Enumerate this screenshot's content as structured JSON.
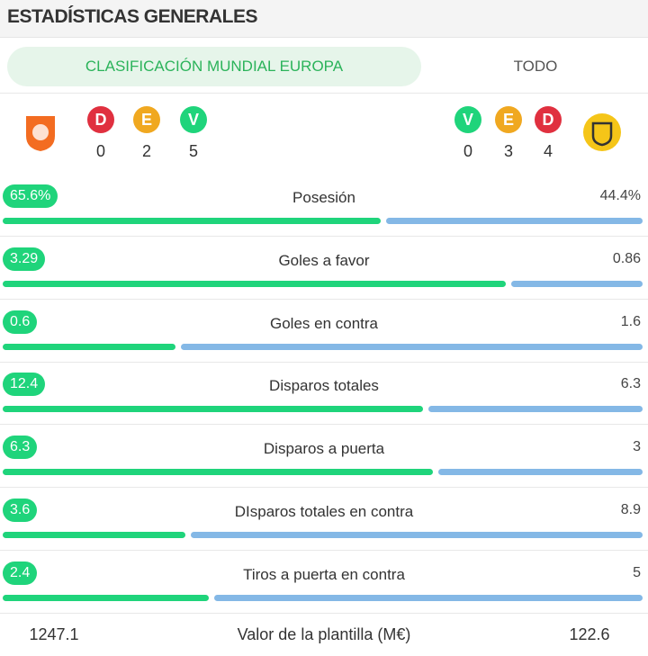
{
  "header": {
    "title": "ESTADÍSTICAS GENERALES"
  },
  "tabs": [
    "CLASIFICACIÓN MUNDIAL EUROPA",
    "TODO"
  ],
  "teams": [
    {
      "record": [
        {
          "letter": "D",
          "count": 0,
          "color": "#e0303f"
        },
        {
          "letter": "E",
          "count": 2,
          "color": "#f0a820"
        },
        {
          "letter": "V",
          "count": 5,
          "color": "#1fd47b"
        }
      ]
    },
    {
      "record": [
        {
          "letter": "V",
          "count": 0,
          "color": "#1fd47b"
        },
        {
          "letter": "E",
          "count": 3,
          "color": "#f0a820"
        },
        {
          "letter": "D",
          "count": 4,
          "color": "#e0303f"
        }
      ]
    }
  ],
  "home_color": "#1fd47b",
  "away_color": "#84b8e6",
  "stats": [
    {
      "label": "Posesión",
      "home": {
        "value": 65.6,
        "label": "65.6%"
      },
      "away": {
        "value": 44.4,
        "label": "44.4%"
      }
    },
    {
      "label": "Goles a favor",
      "home": 3.29,
      "away": 0.86
    },
    {
      "label": "Goles en contra",
      "home": 0.6,
      "away": 1.6
    },
    {
      "label": "Disparos totales",
      "home": 12.4,
      "away": 6.3
    },
    {
      "label": "Disparos a puerta",
      "home": 6.3,
      "away": 3
    },
    {
      "label": "DIsparos totales en contra",
      "home": 3.6,
      "away": 8.9
    },
    {
      "label": "Tiros a puerta en contra",
      "home": 2.4,
      "away": 5
    }
  ],
  "squad_value": {
    "label": "Valor de la plantilla (M€)",
    "home": 1247.1,
    "away": 122.6
  }
}
